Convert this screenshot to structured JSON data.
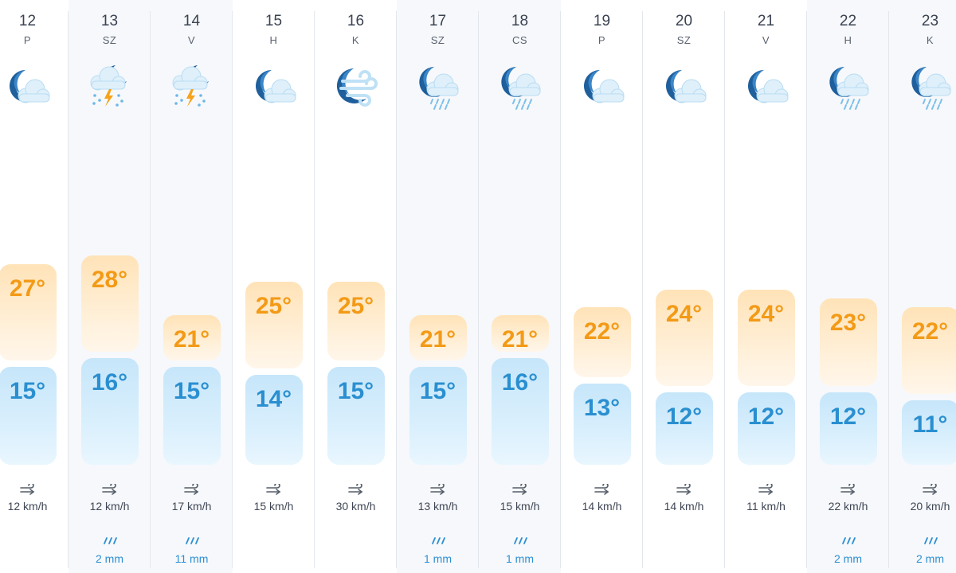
{
  "days": [
    {
      "date": "12",
      "dow": "P",
      "icon": "moon-cloud-icon",
      "max": "27°",
      "max_value": 27,
      "min": "15°",
      "min_value": 15,
      "wind": "12 km/h",
      "precip": ""
    },
    {
      "date": "13",
      "dow": "SZ",
      "icon": "thunderstorm-night-icon",
      "max": "28°",
      "max_value": 28,
      "min": "16°",
      "min_value": 16,
      "wind": "12 km/h",
      "precip": "2 mm"
    },
    {
      "date": "14",
      "dow": "V",
      "icon": "thunderstorm-night-icon",
      "max": "21°",
      "max_value": 21,
      "min": "15°",
      "min_value": 15,
      "wind": "17 km/h",
      "precip": "11 mm"
    },
    {
      "date": "15",
      "dow": "H",
      "icon": "moon-cloud-icon",
      "max": "25°",
      "max_value": 25,
      "min": "14°",
      "min_value": 14,
      "wind": "15 km/h",
      "precip": ""
    },
    {
      "date": "16",
      "dow": "K",
      "icon": "moon-wind-icon",
      "max": "25°",
      "max_value": 25,
      "min": "15°",
      "min_value": 15,
      "wind": "30 km/h",
      "precip": ""
    },
    {
      "date": "17",
      "dow": "SZ",
      "icon": "moon-rain-icon",
      "max": "21°",
      "max_value": 21,
      "min": "15°",
      "min_value": 15,
      "wind": "13 km/h",
      "precip": "1 mm"
    },
    {
      "date": "18",
      "dow": "CS",
      "icon": "moon-rain-icon",
      "max": "21°",
      "max_value": 21,
      "min": "16°",
      "min_value": 16,
      "wind": "15 km/h",
      "precip": "1 mm"
    },
    {
      "date": "19",
      "dow": "P",
      "icon": "moon-cloud-icon",
      "max": "22°",
      "max_value": 22,
      "min": "13°",
      "min_value": 13,
      "wind": "14 km/h",
      "precip": ""
    },
    {
      "date": "20",
      "dow": "SZ",
      "icon": "moon-cloud-icon",
      "max": "24°",
      "max_value": 24,
      "min": "12°",
      "min_value": 12,
      "wind": "14 km/h",
      "precip": ""
    },
    {
      "date": "21",
      "dow": "V",
      "icon": "moon-cloud-icon",
      "max": "24°",
      "max_value": 24,
      "min": "12°",
      "min_value": 12,
      "wind": "11 km/h",
      "precip": ""
    },
    {
      "date": "22",
      "dow": "H",
      "icon": "moon-rain-icon",
      "max": "23°",
      "max_value": 23,
      "min": "12°",
      "min_value": 12,
      "wind": "22 km/h",
      "precip": "2 mm"
    },
    {
      "date": "23",
      "dow": "K",
      "icon": "moon-rain-icon",
      "max": "22°",
      "max_value": 22,
      "min": "11°",
      "min_value": 11,
      "wind": "20 km/h",
      "precip": "2 mm"
    }
  ],
  "colors": {
    "max_text": "#f39a16",
    "min_text": "#2a8fd0",
    "precip_text": "#2d8fd3",
    "max_bar": "#ffe3b8",
    "min_bar": "#c6e6fa"
  }
}
